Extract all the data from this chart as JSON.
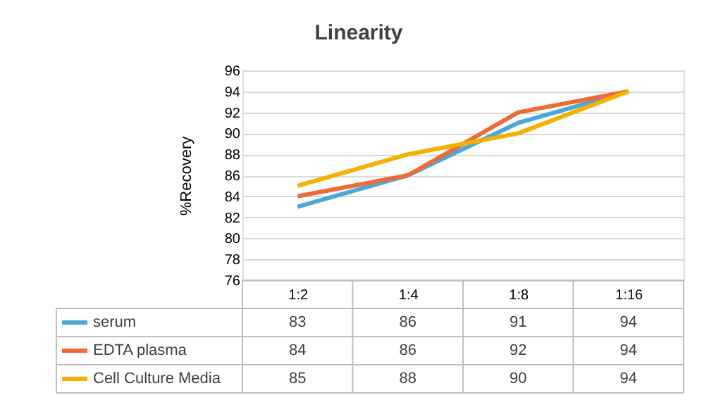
{
  "chart_data": {
    "type": "line",
    "title": "Linearity",
    "ylabel": "%Recovery",
    "categories": [
      "1:2",
      "1:4",
      "1:8",
      "1:16"
    ],
    "series": [
      {
        "name": "serum",
        "color": "#4aa8d8",
        "values": [
          83,
          86,
          91,
          94
        ]
      },
      {
        "name": "EDTA plasma",
        "color": "#f06a35",
        "values": [
          84,
          86,
          92,
          94
        ]
      },
      {
        "name": "Cell Culture Media",
        "color": "#f5b000",
        "values": [
          85,
          88,
          90,
          94
        ]
      }
    ],
    "ylim": [
      76,
      96
    ],
    "yticks": [
      76,
      78,
      80,
      82,
      84,
      86,
      88,
      90,
      92,
      94,
      96
    ],
    "grid": "y",
    "legend": "bottom",
    "data_labels": true,
    "marker": "none",
    "line_style": "solid"
  }
}
